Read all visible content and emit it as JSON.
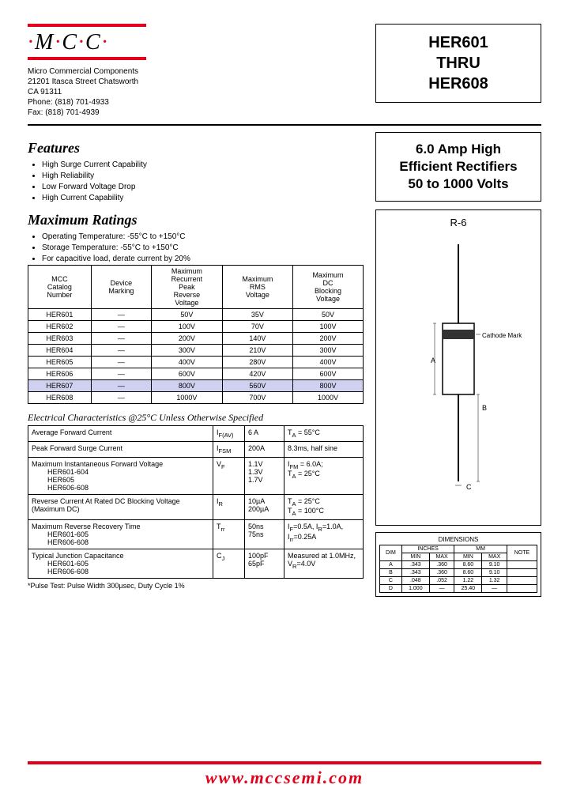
{
  "logo": {
    "text_parts": [
      "·",
      "M",
      "·",
      "C",
      "·",
      "C",
      "·"
    ]
  },
  "company": {
    "name": "Micro Commercial Components",
    "addr1": "21201 Itasca Street Chatsworth",
    "addr2": "CA 91311",
    "phone_label": "Phone:",
    "phone": "(818) 701-4933",
    "fax_label": "Fax:",
    "fax": "(818) 701-4939"
  },
  "part_box": {
    "l1": "HER601",
    "l2": "THRU",
    "l3": "HER608"
  },
  "desc_box": {
    "l1": "6.0 Amp High",
    "l2": "Efficient Rectifiers",
    "l3": "50 to 1000 Volts"
  },
  "features": {
    "title": "Features",
    "items": [
      "High Surge Current Capability",
      "High Reliability",
      "Low Forward Voltage Drop",
      "High Current Capability"
    ]
  },
  "ratings": {
    "title": "Maximum Ratings",
    "notes": [
      "Operating Temperature: -55°C to +150°C",
      "Storage Temperature: -55°C to +150°C",
      "For capacitive load, derate current by 20%"
    ],
    "headers": [
      "MCC Catalog Number",
      "Device Marking",
      "Maximum Recurrent Peak Reverse Voltage",
      "Maximum RMS Voltage",
      "Maximum DC Blocking Voltage"
    ],
    "rows": [
      [
        "HER601",
        "—",
        "50V",
        "35V",
        "50V"
      ],
      [
        "HER602",
        "—",
        "100V",
        "70V",
        "100V"
      ],
      [
        "HER603",
        "—",
        "200V",
        "140V",
        "200V"
      ],
      [
        "HER604",
        "—",
        "300V",
        "210V",
        "300V"
      ],
      [
        "HER605",
        "—",
        "400V",
        "280V",
        "400V"
      ],
      [
        "HER606",
        "—",
        "600V",
        "420V",
        "600V"
      ],
      [
        "HER607",
        "—",
        "800V",
        "560V",
        "800V"
      ],
      [
        "HER608",
        "—",
        "1000V",
        "700V",
        "1000V"
      ]
    ],
    "highlight_row": 6
  },
  "elec": {
    "title": "Electrical Characteristics @25°C Unless Otherwise Specified",
    "rows": [
      {
        "param": "Average Forward Current",
        "sym": "I<sub>F(AV)</sub>",
        "val": "6 A",
        "cond": "T<sub>A</sub> = 55°C"
      },
      {
        "param": "Peak Forward Surge Current",
        "sym": "I<sub>FSM</sub>",
        "val": "200A",
        "cond": "8.3ms, half sine"
      },
      {
        "param": "Maximum Instantaneous Forward Voltage",
        "sub": [
          "HER601-604",
          "HER605",
          "HER606-608"
        ],
        "sym": "V<sub>F</sub>",
        "val": "1.1V<br>1.3V<br>1.7V",
        "cond": "I<sub>FM</sub> = 6.0A;<br>T<sub>A</sub> = 25°C"
      },
      {
        "param": "Reverse Current At Rated DC Blocking Voltage (Maximum DC)",
        "sym": "I<sub>R</sub>",
        "val": "10µA<br>200µA",
        "cond": "T<sub>A</sub> = 25°C<br>T<sub>A</sub> = 100°C"
      },
      {
        "param": "Maximum Reverse Recovery Time",
        "sub": [
          "HER601-605",
          "HER606-608"
        ],
        "sym": "T<sub>rr</sub>",
        "val": "50ns<br>75ns",
        "cond": "I<sub>F</sub>=0.5A, I<sub>R</sub>=1.0A,<br>I<sub>rr</sub>=0.25A"
      },
      {
        "param": "Typical Junction Capacitance",
        "sub": [
          "HER601-605",
          "HER606-608"
        ],
        "sym": "C<sub>J</sub>",
        "val": "100pF<br>65pF",
        "cond": "Measured at 1.0MHz, V<sub>R</sub>=4.0V"
      }
    ]
  },
  "footnote": "*Pulse Test: Pulse Width 300µsec, Duty Cycle 1%",
  "drawing": {
    "package": "R-6",
    "cathode_label": "Cathode Mark",
    "dim_labels": {
      "A": "A",
      "B": "B",
      "C": "C"
    }
  },
  "dims": {
    "title": "DIMENSIONS",
    "headers": [
      "DIM",
      "INCHES",
      "MM",
      "NOTE"
    ],
    "sub": [
      "MIN",
      "MAX",
      "MIN",
      "MAX"
    ],
    "rows": [
      [
        "A",
        ".343",
        ".360",
        "8.60",
        "9.10",
        ""
      ],
      [
        "B",
        ".343",
        ".360",
        "8.60",
        "9.10",
        ""
      ],
      [
        "C",
        ".048",
        ".052",
        "1.22",
        "1.32",
        ""
      ],
      [
        "D",
        "1.000",
        "—",
        "25.40",
        "—",
        ""
      ]
    ]
  },
  "footer_url": "www.mccsemi.com"
}
